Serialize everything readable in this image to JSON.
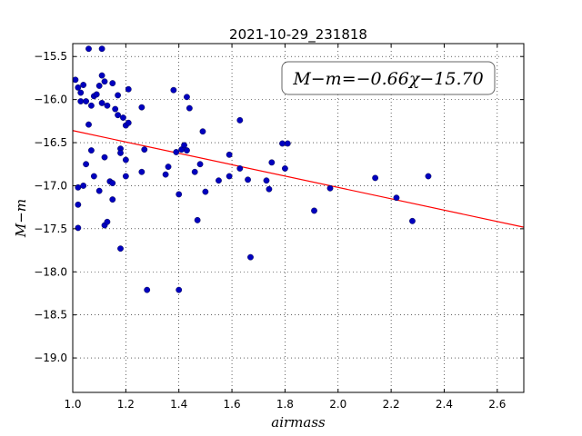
{
  "chart_data": {
    "type": "scatter",
    "title": "2021-10-29_231818",
    "xlabel": "airmass",
    "ylabel": "M−m",
    "xlim": [
      1.0,
      2.7
    ],
    "ylim": [
      -19.4,
      -15.35
    ],
    "y_inverted": true,
    "grid": "dotted",
    "xticks": [
      "1.0",
      "1.2",
      "1.4",
      "1.6",
      "1.8",
      "2.0",
      "2.2",
      "2.4",
      "2.6"
    ],
    "yticks": [
      "−15.5",
      "−16.0",
      "−16.5",
      "−17.0",
      "−17.5",
      "−18.0",
      "−18.5",
      "−19.0"
    ],
    "ytick_values": [
      -15.5,
      -16.0,
      -16.5,
      -17.0,
      -17.5,
      -18.0,
      -18.5,
      -19.0
    ],
    "xtick_values": [
      1.0,
      1.2,
      1.4,
      1.6,
      1.8,
      2.0,
      2.2,
      2.4,
      2.6
    ],
    "annotation": "M−m=−0.66χ−15.70",
    "fit": {
      "slope": -0.66,
      "intercept": -15.7,
      "color": "#ff0000"
    },
    "marker_color": "#0000bf",
    "points": [
      [
        1.06,
        -15.41
      ],
      [
        1.11,
        -15.41
      ],
      [
        1.01,
        -15.77
      ],
      [
        1.02,
        -15.86
      ],
      [
        1.04,
        -15.83
      ],
      [
        1.03,
        -15.92
      ],
      [
        1.1,
        -15.84
      ],
      [
        1.11,
        -15.72
      ],
      [
        1.12,
        -15.79
      ],
      [
        1.15,
        -15.81
      ],
      [
        1.17,
        -15.95
      ],
      [
        1.21,
        -15.88
      ],
      [
        1.08,
        -15.96
      ],
      [
        1.09,
        -15.94
      ],
      [
        1.03,
        -16.02
      ],
      [
        1.05,
        -16.02
      ],
      [
        1.07,
        -16.07
      ],
      [
        1.11,
        -16.04
      ],
      [
        1.13,
        -16.07
      ],
      [
        1.16,
        -16.11
      ],
      [
        1.17,
        -16.18
      ],
      [
        1.19,
        -16.21
      ],
      [
        1.2,
        -16.3
      ],
      [
        1.21,
        -16.27
      ],
      [
        1.06,
        -16.29
      ],
      [
        1.26,
        -16.09
      ],
      [
        1.07,
        -16.59
      ],
      [
        1.05,
        -16.75
      ],
      [
        1.12,
        -16.67
      ],
      [
        1.18,
        -16.57
      ],
      [
        1.18,
        -16.62
      ],
      [
        1.2,
        -16.7
      ],
      [
        1.08,
        -16.89
      ],
      [
        1.1,
        -17.06
      ],
      [
        1.02,
        -17.02
      ],
      [
        1.04,
        -17.0
      ],
      [
        1.02,
        -17.22
      ],
      [
        1.14,
        -16.95
      ],
      [
        1.15,
        -16.97
      ],
      [
        1.15,
        -17.16
      ],
      [
        1.2,
        -16.89
      ],
      [
        1.02,
        -17.49
      ],
      [
        1.12,
        -17.46
      ],
      [
        1.13,
        -17.42
      ],
      [
        1.18,
        -17.73
      ],
      [
        1.27,
        -16.58
      ],
      [
        1.26,
        -16.84
      ],
      [
        1.28,
        -18.21
      ],
      [
        1.35,
        -16.87
      ],
      [
        1.36,
        -16.78
      ],
      [
        1.38,
        -15.89
      ],
      [
        1.39,
        -16.61
      ],
      [
        1.4,
        -17.1
      ],
      [
        1.4,
        -18.21
      ],
      [
        1.41,
        -16.58
      ],
      [
        1.42,
        -16.53
      ],
      [
        1.43,
        -16.59
      ],
      [
        1.43,
        -15.97
      ],
      [
        1.44,
        -16.1
      ],
      [
        1.46,
        -16.84
      ],
      [
        1.47,
        -17.4
      ],
      [
        1.48,
        -16.75
      ],
      [
        1.49,
        -16.37
      ],
      [
        1.5,
        -17.07
      ],
      [
        1.55,
        -16.94
      ],
      [
        1.59,
        -16.89
      ],
      [
        1.59,
        -16.64
      ],
      [
        1.63,
        -16.8
      ],
      [
        1.63,
        -16.24
      ],
      [
        1.66,
        -16.93
      ],
      [
        1.67,
        -17.83
      ],
      [
        1.73,
        -16.94
      ],
      [
        1.74,
        -17.04
      ],
      [
        1.75,
        -16.73
      ],
      [
        1.79,
        -16.51
      ],
      [
        1.8,
        -16.8
      ],
      [
        1.81,
        -16.51
      ],
      [
        1.91,
        -17.29
      ],
      [
        1.97,
        -17.03
      ],
      [
        2.14,
        -16.91
      ],
      [
        2.22,
        -17.14
      ],
      [
        2.28,
        -17.41
      ],
      [
        2.34,
        -16.89
      ]
    ]
  }
}
